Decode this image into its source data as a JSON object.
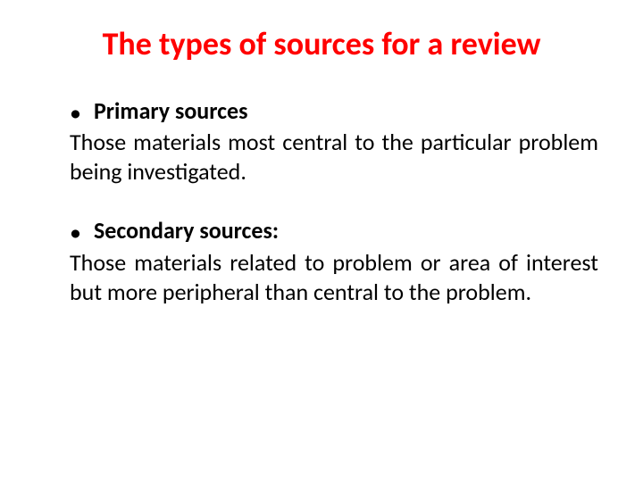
{
  "title": {
    "text": "The types of sources for a review",
    "color": "#ff0000",
    "fontsize": 36
  },
  "body": {
    "color": "#000000",
    "fontsize": 26,
    "bullet_color": "#000000"
  },
  "items": [
    {
      "bullet": "•",
      "label": "Primary sources",
      "label_suffix": "",
      "description": "Those materials most central to the particular problem being investigated."
    },
    {
      "bullet": "•",
      "label": "Secondary sources",
      "label_suffix": ":",
      "description": "Those materials  related to problem or area of interest but more peripheral than central to the problem."
    }
  ]
}
